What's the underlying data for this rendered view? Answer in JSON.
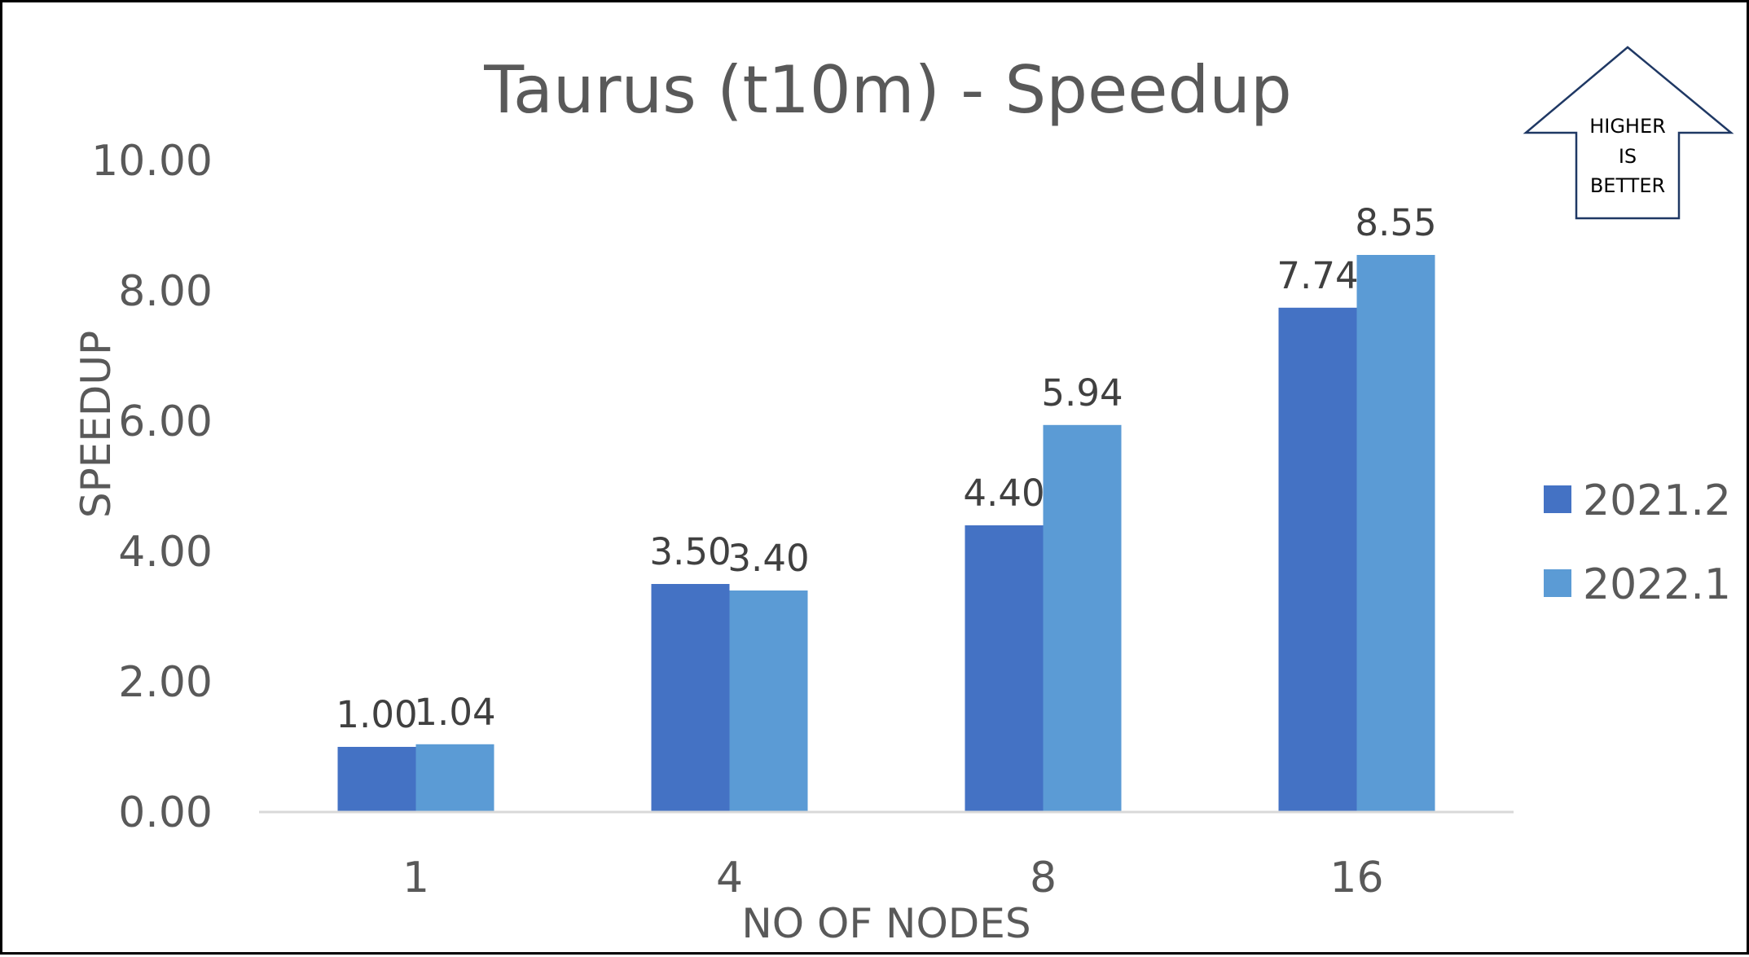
{
  "chart_data": {
    "type": "bar",
    "title": "Taurus (t10m) - Speedup",
    "xlabel": "NO OF NODES",
    "ylabel": "SPEEDUP",
    "categories": [
      "1",
      "4",
      "8",
      "16"
    ],
    "series": [
      {
        "name": "2021.2",
        "values": [
          1.0,
          3.5,
          4.4,
          7.74
        ],
        "color": "#4472C4"
      },
      {
        "name": "2022.1",
        "values": [
          1.04,
          3.4,
          5.94,
          8.55
        ],
        "color": "#5B9BD5"
      }
    ],
    "data_labels": [
      [
        "1.00",
        "3.50",
        "4.40",
        "7.74"
      ],
      [
        "1.04",
        "3.40",
        "5.94",
        "8.55"
      ]
    ],
    "ylim": [
      0,
      10
    ],
    "yticks": [
      "0.00",
      "2.00",
      "4.00",
      "6.00",
      "8.00",
      "10.00"
    ],
    "grid": false,
    "legend_position": "right"
  },
  "badge": {
    "lines": [
      "HIGHER",
      "IS",
      "BETTER"
    ],
    "icon": "up-arrow-icon"
  },
  "colors": {
    "text": "#595959",
    "data_label": "#404040",
    "axis_line": "#D9D9D9",
    "border": "#000000"
  }
}
